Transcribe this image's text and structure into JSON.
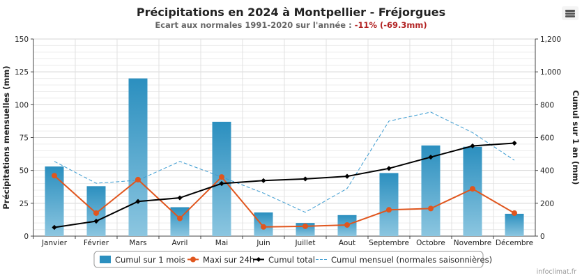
{
  "header": {
    "title": "Précipitations en 2024 à Montpellier - Fréjorgues",
    "subtitle_prefix": "Ecart aux normales 1991-2020 sur l'année : ",
    "subtitle_value": "-11% (-69.3mm)"
  },
  "menu": {
    "icon": "hamburger-menu-icon"
  },
  "credits": "infoclimat.fr",
  "colors": {
    "bar_top": "#2b8fbf",
    "bar_bottom": "#8cc6e0",
    "max24h": "#e0561e",
    "cumul_total": "#000000",
    "normales": "#3a9bd1",
    "subtitle_highlight": "#b22222"
  },
  "chart_data": {
    "type": "bar",
    "categories": [
      "Janvier",
      "Février",
      "Mars",
      "Avril",
      "Mai",
      "Juin",
      "Juillet",
      "Aout",
      "Septembre",
      "Octobre",
      "Novembre",
      "Décembre"
    ],
    "ylabel": "Précipitations mensuelles (mm)",
    "y2label": "Cumul sur 1 an (mm)",
    "ylim": [
      0,
      150
    ],
    "y2lim": [
      0,
      1200
    ],
    "yticks": [
      "0",
      "25",
      "50",
      "75",
      "100",
      "125",
      "150"
    ],
    "y2ticks": [
      "0",
      "200",
      "400",
      "600",
      "800",
      "1,000",
      "1,200"
    ],
    "grid": true,
    "legend_position": "bottom",
    "series": [
      {
        "name": "Cumul sur 1 mois",
        "type": "bar",
        "axis": "left",
        "values": [
          53,
          38,
          120,
          22,
          87,
          18,
          10,
          16,
          48,
          69,
          68,
          17
        ]
      },
      {
        "name": "Maxi sur 24h",
        "type": "line",
        "axis": "left",
        "values": [
          46,
          17.5,
          43,
          13.5,
          45,
          7,
          7.5,
          8.5,
          20,
          21,
          36,
          17.5
        ]
      },
      {
        "name": "Cumul total",
        "type": "line",
        "axis": "right",
        "values": [
          53,
          91,
          211,
          233,
          320,
          338,
          348,
          364,
          412,
          481,
          549,
          566
        ]
      },
      {
        "name": "Cumul mensuel (normales saisonnières)",
        "type": "line",
        "axis": "right",
        "values": [
          455,
          322,
          340,
          455,
          360,
          262,
          145,
          290,
          700,
          755,
          630,
          462
        ]
      }
    ]
  }
}
